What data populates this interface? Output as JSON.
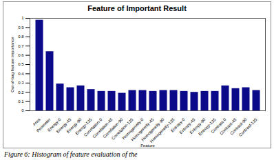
{
  "chart_data": {
    "type": "bar",
    "title": "Feature of Important Result",
    "x_label": "Feature",
    "y_label": "Out-of-bag feature importance",
    "caption": "Figure 6: Histogram of feature evaluation of the",
    "categories": [
      "Area",
      "Perimeter",
      "Energy-0",
      "Energy-45",
      "Energy-90",
      "Energy-135",
      "Correlation-0",
      "Correlation-45",
      "Correlation-90",
      "Correlation-135",
      "Homogeneity-0",
      "Homogeneity-45",
      "Homogeneity-90",
      "Homogeneity-135",
      "Entropy-0",
      "Entropy-45",
      "Entropy-90",
      "Entropy-135",
      "Contrast-0",
      "Contrast-45",
      "Contrast-90",
      "Contrast-135"
    ],
    "values": [
      0.98,
      0.64,
      0.29,
      0.25,
      0.27,
      0.23,
      0.21,
      0.21,
      0.19,
      0.22,
      0.22,
      0.21,
      0.22,
      0.22,
      0.21,
      0.2,
      0.21,
      0.21,
      0.27,
      0.24,
      0.25,
      0.22
    ],
    "color": "#0b0b8a",
    "ylim": [
      0,
      1
    ],
    "yticks": [
      0,
      0.1,
      0.2,
      0.3,
      0.4,
      0.5,
      0.6,
      0.7,
      0.8,
      0.9,
      1
    ],
    "grid": false
  }
}
